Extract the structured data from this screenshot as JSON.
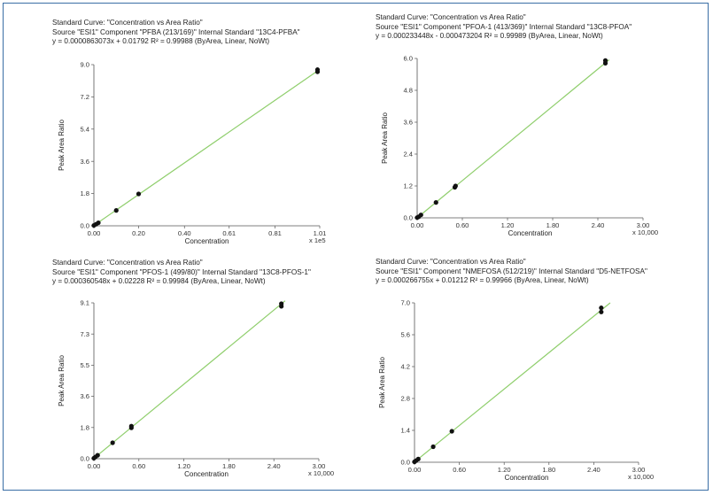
{
  "chart_data": [
    {
      "type": "scatter",
      "header_line1": "Standard Curve: \"Concentration vs Area Ratio\"",
      "header_line2": "Source \"ESI1\" Component \"PFBA (213/169)\"   Internal Standard \"13C4-PFBA\"",
      "header_line3": "y = 0.0000863073x + 0.01792    R² = 0.99988  (ByArea, Linear, NoWt)",
      "xlabel": "Concentration",
      "ylabel": "Peak Area Ratio",
      "x_multiplier_label": "x 1e5",
      "xlim": [
        0,
        1.01
      ],
      "ylim": [
        0,
        9.0
      ],
      "x_ticks": [
        "0.00",
        "0.20",
        "0.40",
        "0.61",
        "0.81",
        "1.01"
      ],
      "x_tick_values": [
        0,
        0.2,
        0.405,
        0.605,
        0.81,
        1.01
      ],
      "y_ticks": [
        "0.0",
        "1.8",
        "3.6",
        "5.4",
        "7.2",
        "9.0"
      ],
      "y_tick_values": [
        0,
        1.8,
        3.6,
        5.4,
        7.2,
        9.0
      ],
      "line": {
        "x": [
          0,
          1.0
        ],
        "y": [
          0.018,
          8.65
        ],
        "color": "#8fce6c"
      },
      "points": [
        {
          "x": 0.0,
          "y": 0.02
        },
        {
          "x": 0.01,
          "y": 0.09
        },
        {
          "x": 0.02,
          "y": 0.17
        },
        {
          "x": 0.1,
          "y": 0.86
        },
        {
          "x": 0.2,
          "y": 1.78
        },
        {
          "x": 1.0,
          "y": 8.6
        },
        {
          "x": 1.0,
          "y": 8.72
        }
      ]
    },
    {
      "type": "scatter",
      "header_line1": "Standard Curve: \"Concentration vs Area Ratio\"",
      "header_line2": "Source \"ESI1\" Component \"PFOA-1 (413/369)\"   Internal Standard \"13C8-PFOA\"",
      "header_line3": "y = 0.000233448x - 0.000473204    R² = 0.99989  (ByArea, Linear, NoWt)",
      "xlabel": "Concentration",
      "ylabel": "Peak Area Ratio",
      "x_multiplier_label": "x 10,000",
      "xlim": [
        0,
        3.0
      ],
      "ylim": [
        0,
        6.0
      ],
      "x_ticks": [
        "0.00",
        "0.60",
        "1.20",
        "1.80",
        "2.40",
        "3.00"
      ],
      "x_tick_values": [
        0,
        0.6,
        1.2,
        1.8,
        2.4,
        3.0
      ],
      "y_ticks": [
        "0.0",
        "1.2",
        "2.4",
        "3.6",
        "4.8",
        "6.0"
      ],
      "y_tick_values": [
        0,
        1.2,
        2.4,
        3.6,
        4.8,
        6.0
      ],
      "line": {
        "x": [
          0,
          2.55
        ],
        "y": [
          0,
          5.95
        ],
        "color": "#8fce6c"
      },
      "points": [
        {
          "x": 0.0,
          "y": 0.01
        },
        {
          "x": 0.02,
          "y": 0.04
        },
        {
          "x": 0.05,
          "y": 0.11
        },
        {
          "x": 0.25,
          "y": 0.58
        },
        {
          "x": 0.5,
          "y": 1.15
        },
        {
          "x": 0.51,
          "y": 1.2
        },
        {
          "x": 2.5,
          "y": 5.82
        },
        {
          "x": 2.5,
          "y": 5.92
        }
      ]
    },
    {
      "type": "scatter",
      "header_line1": "Standard Curve: \"Concentration vs Area Ratio\"",
      "header_line2": "Source \"ESI1\" Component \"PFOS-1 (499/80)\"   Internal Standard \"13C8-PFOS-1\"",
      "header_line3": "y = 0.000360548x + 0.02228    R² = 0.99984  (ByArea, Linear, NoWt)",
      "xlabel": "Concentration",
      "ylabel": "Peak Area Ratio",
      "x_multiplier_label": "x 10,000",
      "xlim": [
        0,
        3.0
      ],
      "ylim": [
        0,
        9.1
      ],
      "x_ticks": [
        "0.00",
        "0.60",
        "1.20",
        "1.80",
        "2.40",
        "3.00"
      ],
      "x_tick_values": [
        0,
        0.6,
        1.2,
        1.8,
        2.4,
        3.0
      ],
      "y_ticks": [
        "0.0",
        "1.8",
        "3.6",
        "5.5",
        "7.3",
        "9.1"
      ],
      "y_tick_values": [
        0,
        1.82,
        3.64,
        5.46,
        7.28,
        9.1
      ],
      "line": {
        "x": [
          0,
          2.55
        ],
        "y": [
          0.022,
          9.22
        ],
        "color": "#8fce6c"
      },
      "points": [
        {
          "x": 0.0,
          "y": 0.03
        },
        {
          "x": 0.02,
          "y": 0.1
        },
        {
          "x": 0.05,
          "y": 0.2
        },
        {
          "x": 0.25,
          "y": 0.93
        },
        {
          "x": 0.5,
          "y": 1.8
        },
        {
          "x": 0.5,
          "y": 1.9
        },
        {
          "x": 2.5,
          "y": 8.9
        },
        {
          "x": 2.5,
          "y": 9.05
        }
      ]
    },
    {
      "type": "scatter",
      "header_line1": "Standard Curve: \"Concentration vs Area Ratio\"",
      "header_line2": "Source \"ESI1\" Component \"NMEFOSA (512/219)\"   Internal Standard \"D5-NETFOSA\"",
      "header_line3": "y = 0.000266755x + 0.01212    R² = 0.99966  (ByArea, Linear, NoWt)",
      "xlabel": "Concentration",
      "ylabel": "Peak Area Ratio",
      "x_multiplier_label": "x 10,000",
      "xlim": [
        0,
        3.0
      ],
      "ylim": [
        0,
        7.0
      ],
      "x_ticks": [
        "0.00",
        "0.60",
        "1.20",
        "1.80",
        "2.40",
        "3.00"
      ],
      "x_tick_values": [
        0,
        0.6,
        1.2,
        1.8,
        2.4,
        3.0
      ],
      "y_ticks": [
        "0.0",
        "1.4",
        "2.8",
        "4.2",
        "5.6",
        "7.0"
      ],
      "y_tick_values": [
        0,
        1.4,
        2.8,
        4.2,
        5.6,
        7.0
      ],
      "line": {
        "x": [
          0,
          2.62
        ],
        "y": [
          0.012,
          7.0
        ],
        "color": "#8fce6c"
      },
      "points": [
        {
          "x": 0.0,
          "y": 0.02
        },
        {
          "x": 0.02,
          "y": 0.07
        },
        {
          "x": 0.05,
          "y": 0.14
        },
        {
          "x": 0.25,
          "y": 0.68
        },
        {
          "x": 0.5,
          "y": 1.36
        },
        {
          "x": 2.5,
          "y": 6.6
        },
        {
          "x": 2.5,
          "y": 6.78
        }
      ]
    }
  ],
  "style": {
    "frame_color": "#3a6ea5",
    "fit_line_color": "#8fce6c",
    "point_color": "#111111",
    "axis_color": "#555555"
  }
}
